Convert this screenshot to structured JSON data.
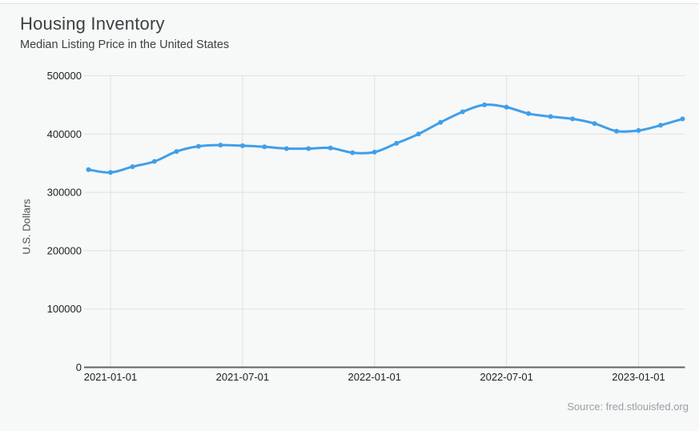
{
  "chart_data": {
    "type": "line",
    "title": "Housing Inventory",
    "subtitle": "Median Listing Price in the United States",
    "ylabel": "U.S. Dollars",
    "xlabel": "",
    "source": "Source: fred.stlouisfed.org",
    "legend_position": "none",
    "grid": true,
    "marker": "circle",
    "ylim": [
      0,
      500000
    ],
    "y_ticks": [
      0,
      100000,
      200000,
      300000,
      400000,
      500000
    ],
    "x_tick_labels": [
      "2021-01-01",
      "2021-07-01",
      "2022-01-01",
      "2022-07-01",
      "2023-01-01"
    ],
    "x": [
      "2020-12-01",
      "2021-01-01",
      "2021-02-01",
      "2021-03-01",
      "2021-04-01",
      "2021-05-01",
      "2021-06-01",
      "2021-07-01",
      "2021-08-01",
      "2021-09-01",
      "2021-10-01",
      "2021-11-01",
      "2021-12-01",
      "2022-01-01",
      "2022-02-01",
      "2022-03-01",
      "2022-04-01",
      "2022-05-01",
      "2022-06-01",
      "2022-07-01",
      "2022-08-01",
      "2022-09-01",
      "2022-10-01",
      "2022-11-01",
      "2022-12-01",
      "2023-01-01",
      "2023-02-01",
      "2023-03-01"
    ],
    "series": [
      {
        "name": "Median Listing Price in the United States",
        "color": "#3f9fe9",
        "values": [
          339000,
          334000,
          344000,
          353000,
          370000,
          379000,
          381000,
          380000,
          378000,
          375000,
          375000,
          376000,
          368000,
          369000,
          384000,
          400000,
          420000,
          438000,
          450000,
          446000,
          435000,
          430000,
          426000,
          418000,
          405000,
          406000,
          415000,
          426000
        ]
      }
    ]
  },
  "colors": {
    "background": "#f7f8f8",
    "grid": "#e0e0e0",
    "axis": "#5f6368",
    "tick_label": "#202124",
    "title": "#3c4043",
    "source": "#9aa0a6"
  }
}
